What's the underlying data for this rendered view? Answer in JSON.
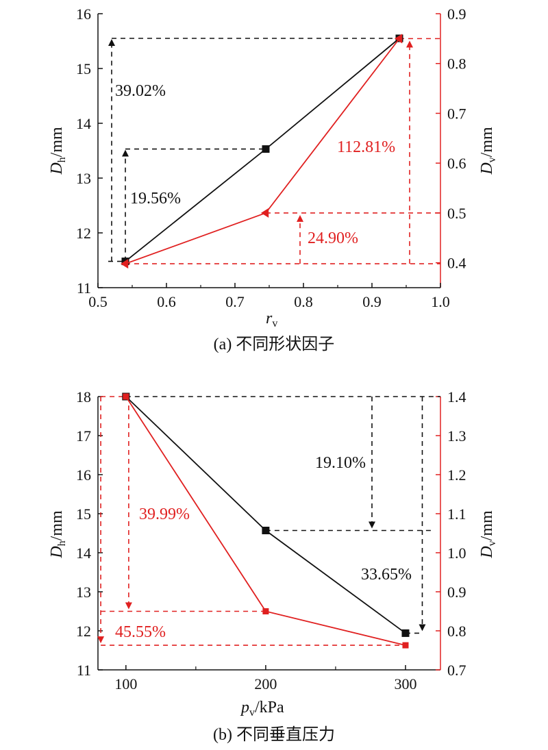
{
  "colors": {
    "black_series": "#111111",
    "red_series": "#e02020"
  },
  "chart_data": [
    {
      "type": "line",
      "caption": "(a) 不同形状因子",
      "xlabel_main": "r",
      "xlabel_sub": "v",
      "ylabel_left_main": "D",
      "ylabel_left_sub": "h",
      "ylabel_left_unit": "/mm",
      "ylabel_right_main": "D",
      "ylabel_right_sub": "v",
      "ylabel_right_unit": "/mm",
      "xlim": [
        0.5,
        1.0
      ],
      "xticks": [
        0.5,
        0.6,
        0.7,
        0.8,
        0.9,
        1.0
      ],
      "xtick_labels": [
        "0.5",
        "0.6",
        "0.7",
        "0.8",
        "0.9",
        "1.0"
      ],
      "ylim_left": [
        11,
        16
      ],
      "yticks_left": [
        11,
        12,
        13,
        14,
        15,
        16
      ],
      "ylim_right": [
        0.35,
        0.9
      ],
      "yticks_right": [
        0.4,
        0.5,
        0.6,
        0.7,
        0.8,
        0.9
      ],
      "ytick_labels_right": [
        "0.4",
        "0.5",
        "0.6",
        "0.7",
        "0.8",
        "0.9"
      ],
      "series": [
        {
          "axis": "left",
          "marker": "square",
          "color": "#111111",
          "x": [
            0.54,
            0.745,
            0.94
          ],
          "y": [
            11.48,
            13.53,
            15.55
          ]
        },
        {
          "axis": "right",
          "marker": "triangle-left",
          "color": "#e02020",
          "x": [
            0.54,
            0.745,
            0.94
          ],
          "y": [
            0.398,
            0.5,
            0.85
          ]
        }
      ],
      "annotations": [
        {
          "text": "39.02%",
          "color": "#111111"
        },
        {
          "text": "19.56%",
          "color": "#111111"
        },
        {
          "text": "112.81%",
          "color": "#e02020"
        },
        {
          "text": "24.90%",
          "color": "#e02020"
        }
      ]
    },
    {
      "type": "line",
      "caption": "(b) 不同垂直压力",
      "xlabel_main": "p",
      "xlabel_sub": "v",
      "xlabel_unit": "/kPa",
      "ylabel_left_main": "D",
      "ylabel_left_sub": "h",
      "ylabel_left_unit": "/mm",
      "ylabel_right_main": "D",
      "ylabel_right_sub": "v",
      "ylabel_right_unit": "/mm",
      "xlim": [
        80,
        325
      ],
      "xticks": [
        100,
        200,
        300
      ],
      "xtick_labels": [
        "100",
        "200",
        "300"
      ],
      "ylim_left": [
        11,
        18
      ],
      "yticks_left": [
        11,
        12,
        13,
        14,
        15,
        16,
        17,
        18
      ],
      "ylim_right": [
        0.7,
        1.4
      ],
      "yticks_right": [
        0.7,
        0.8,
        0.9,
        1.0,
        1.1,
        1.2,
        1.3,
        1.4
      ],
      "ytick_labels_right": [
        "0.7",
        "0.8",
        "0.9",
        "1.0",
        "1.1",
        "1.2",
        "1.3",
        "1.4"
      ],
      "series": [
        {
          "axis": "left",
          "marker": "square",
          "color": "#111111",
          "x": [
            100,
            200,
            300
          ],
          "y": [
            18.0,
            14.57,
            11.94
          ]
        },
        {
          "axis": "right",
          "marker": "square",
          "color": "#e02020",
          "x": [
            100,
            200,
            300
          ],
          "y": [
            1.4,
            0.85,
            0.763
          ]
        }
      ],
      "annotations": [
        {
          "text": "19.10%",
          "color": "#111111"
        },
        {
          "text": "33.65%",
          "color": "#111111"
        },
        {
          "text": "39.99%",
          "color": "#e02020"
        },
        {
          "text": "45.55%",
          "color": "#e02020"
        }
      ]
    }
  ]
}
